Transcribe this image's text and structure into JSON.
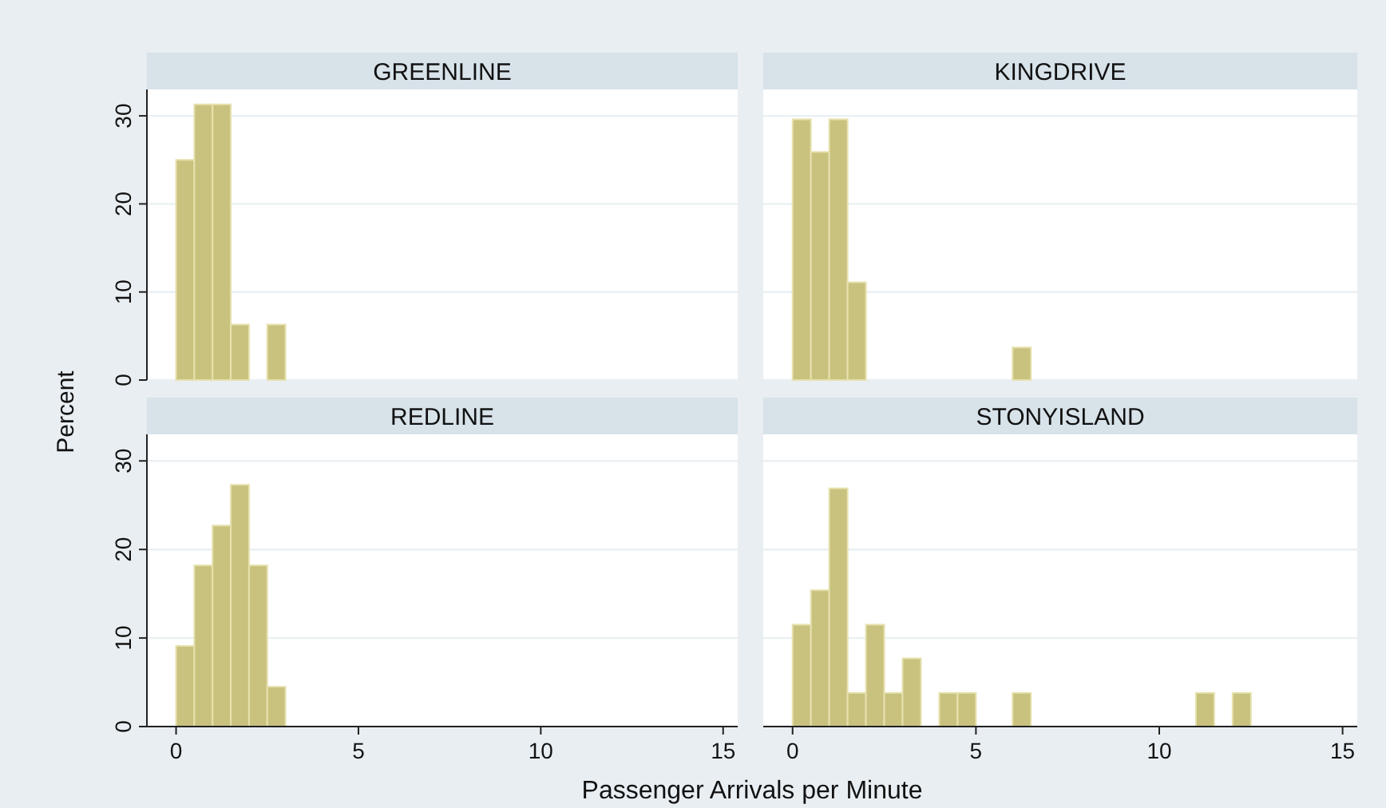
{
  "chart_data": [
    {
      "type": "histogram",
      "title": "GREENLINE",
      "ylabel": "Percent",
      "bins": [
        0,
        0.5,
        1,
        1.5,
        2,
        2.5,
        3
      ],
      "values": [
        25,
        31.3,
        31.3,
        6.3,
        0,
        6.3
      ],
      "color": "#c9c27e",
      "xlim": [
        -0.8,
        15.4
      ],
      "ylim": [
        0,
        33
      ],
      "yticks": [
        0,
        10,
        20,
        30
      ],
      "grid": "y",
      "tick_labels": "y"
    },
    {
      "type": "histogram",
      "title": "KINGDRIVE",
      "bins": [
        0,
        0.5,
        1,
        1.5,
        2,
        2.5,
        3,
        3.5,
        4,
        4.5,
        5,
        5.5,
        6,
        6.5
      ],
      "values": [
        29.6,
        25.9,
        29.6,
        11.1,
        0,
        0,
        0,
        0,
        0,
        0,
        0,
        0,
        3.7
      ],
      "color": "#c9c27e",
      "xlim": [
        -0.8,
        15.4
      ],
      "ylim": [
        0,
        33
      ],
      "yticks": [
        0,
        10,
        20,
        30
      ],
      "grid": "y",
      "tick_labels": false
    },
    {
      "type": "histogram",
      "title": "REDLINE",
      "xlabel": "Passenger Arrivals per Minute",
      "bins": [
        0,
        0.5,
        1,
        1.5,
        2,
        2.5,
        3
      ],
      "values": [
        9.1,
        18.2,
        22.7,
        27.3,
        18.2,
        4.5
      ],
      "color": "#c9c27e",
      "xlim": [
        -0.8,
        15.4
      ],
      "ylim": [
        0,
        33
      ],
      "xticks": [
        0,
        5,
        10,
        15
      ],
      "yticks": [
        0,
        10,
        20,
        30
      ],
      "grid": "y"
    },
    {
      "type": "histogram",
      "title": "STONYISLAND",
      "bins": [
        0,
        0.5,
        1,
        1.5,
        2,
        2.5,
        3,
        3.5,
        4,
        4.5,
        5,
        5.5,
        6,
        6.5,
        7,
        7.5,
        8,
        8.5,
        9,
        9.5,
        10,
        10.5,
        11,
        11.5,
        12,
        12.5
      ],
      "values": [
        11.5,
        15.4,
        26.9,
        3.8,
        11.5,
        3.8,
        7.7,
        0,
        3.8,
        3.8,
        0,
        0,
        3.8,
        0,
        0,
        0,
        0,
        0,
        0,
        0,
        0,
        0,
        3.8,
        0,
        3.8
      ],
      "color": "#c9c27e",
      "xlim": [
        -0.8,
        15.4
      ],
      "ylim": [
        0,
        33
      ],
      "xticks": [
        0,
        5,
        10,
        15
      ],
      "yticks": [
        0,
        10,
        20,
        30
      ],
      "grid": "y",
      "tick_labels": "x"
    }
  ]
}
